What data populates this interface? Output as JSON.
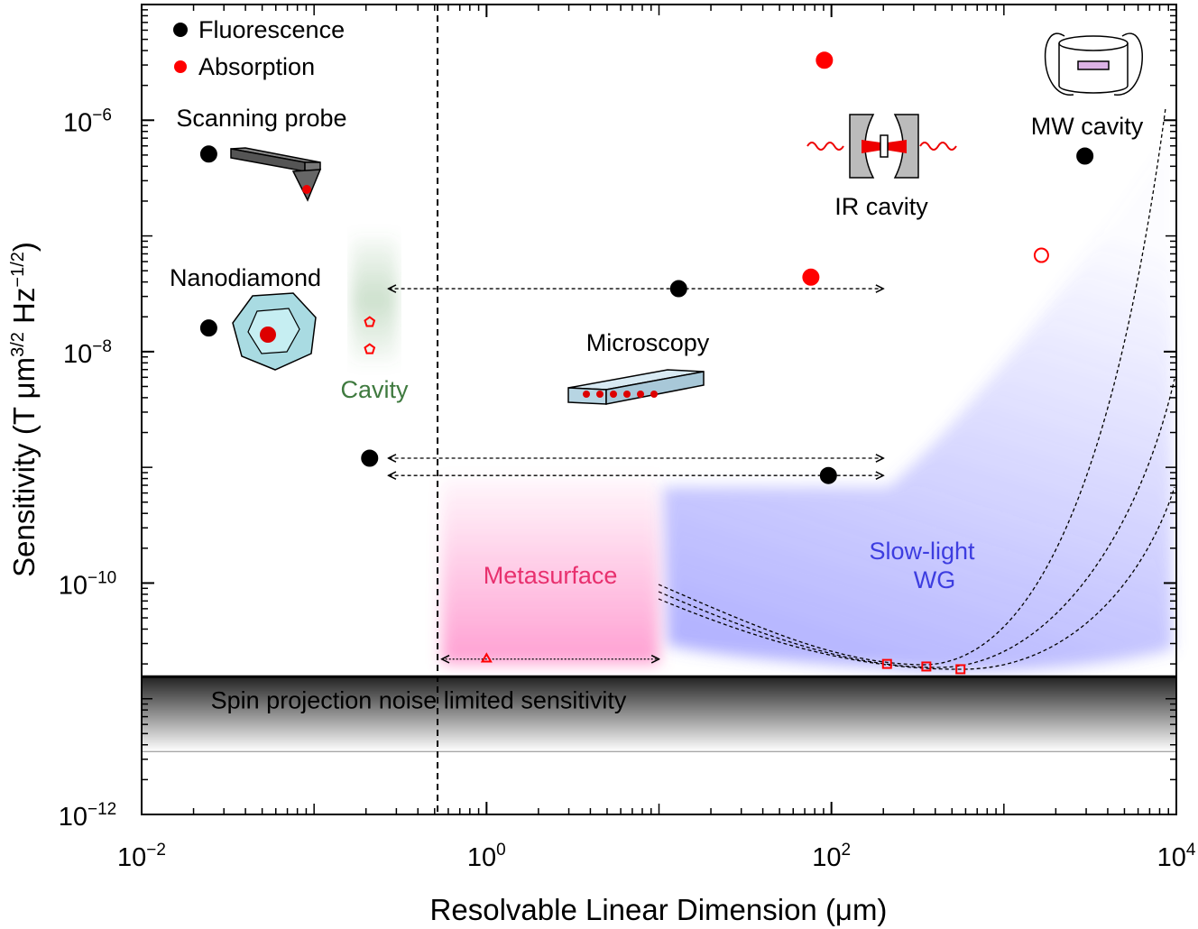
{
  "chart_data": {
    "type": "scatter",
    "x_label": "Resolvable Linear Dimension (μm)",
    "y_label": [
      "Sensitivity (T μm",
      "3/2",
      " Hz",
      "−1/2",
      ")"
    ],
    "xscale": "log",
    "yscale": "log",
    "xlim": [
      0.01,
      10000
    ],
    "ylim": [
      1e-12,
      1e-05
    ],
    "xticks": [
      {
        "value": 0.01,
        "label": "10−2"
      },
      {
        "value": 1,
        "label": "100"
      },
      {
        "value": 100,
        "label": "102"
      },
      {
        "value": 10000,
        "label": "104"
      }
    ],
    "yticks": [
      {
        "value": 1e-12,
        "label": "10−12"
      },
      {
        "value": 1e-10,
        "label": "10−10"
      },
      {
        "value": 1e-08,
        "label": "10−8"
      },
      {
        "value": 1e-06,
        "label": "10−6"
      }
    ],
    "legend": "upper left",
    "series": [
      {
        "name": "Fluorescence",
        "color": "#000000",
        "x": [
          0.0245,
          0.0245,
          0.21,
          13,
          96,
          2950
        ],
        "values": [
          5.1e-07,
          1.6e-08,
          1.2e-09,
          3.5e-08,
          8.5e-10,
          4.9e-07
        ],
        "markers": [
          "circle",
          "circle",
          "circle",
          "circle",
          "circle",
          "circle"
        ]
      },
      {
        "name": "Absorption",
        "color": "#ff0000",
        "x": [
          91,
          76,
          1650,
          0.21,
          0.21,
          1,
          210,
          355,
          560
        ],
        "values": [
          3.3e-06,
          4.4e-08,
          6.8e-08,
          1.8e-08,
          1.05e-08,
          2.2e-11,
          2e-11,
          1.9e-11,
          1.8e-11
        ],
        "markers": [
          "circle",
          "circle",
          "open-circle",
          "open-pentagon",
          "open-pentagon",
          "open-triangle",
          "open-square",
          "open-square",
          "open-square"
        ]
      }
    ],
    "ranges": [
      {
        "x": [
          0.27,
          200
        ],
        "y": 3.5e-08
      },
      {
        "x": [
          0.27,
          200
        ],
        "y": 1.2e-09
      },
      {
        "x": [
          0.27,
          200
        ],
        "y": 8.5e-10
      },
      {
        "x": [
          0.55,
          10
        ],
        "y": 2.2e-11
      }
    ],
    "regions": [
      {
        "label": "Metasurface",
        "color": "#ff5fb4",
        "x": [
          0.55,
          10
        ],
        "y": [
          2e-11,
          8e-10
        ]
      },
      {
        "label": "Spin projection noise limited sensitivity",
        "color": "#000000",
        "y": [
          3.5e-12,
          1.55e-11
        ]
      }
    ],
    "threshold_x": 0.52,
    "annotations": [
      "Scanning probe",
      "Nanodiamond",
      "Cavity",
      "Microscopy",
      "IR cavity",
      "MW cavity",
      "Slow-light",
      "WG"
    ]
  }
}
